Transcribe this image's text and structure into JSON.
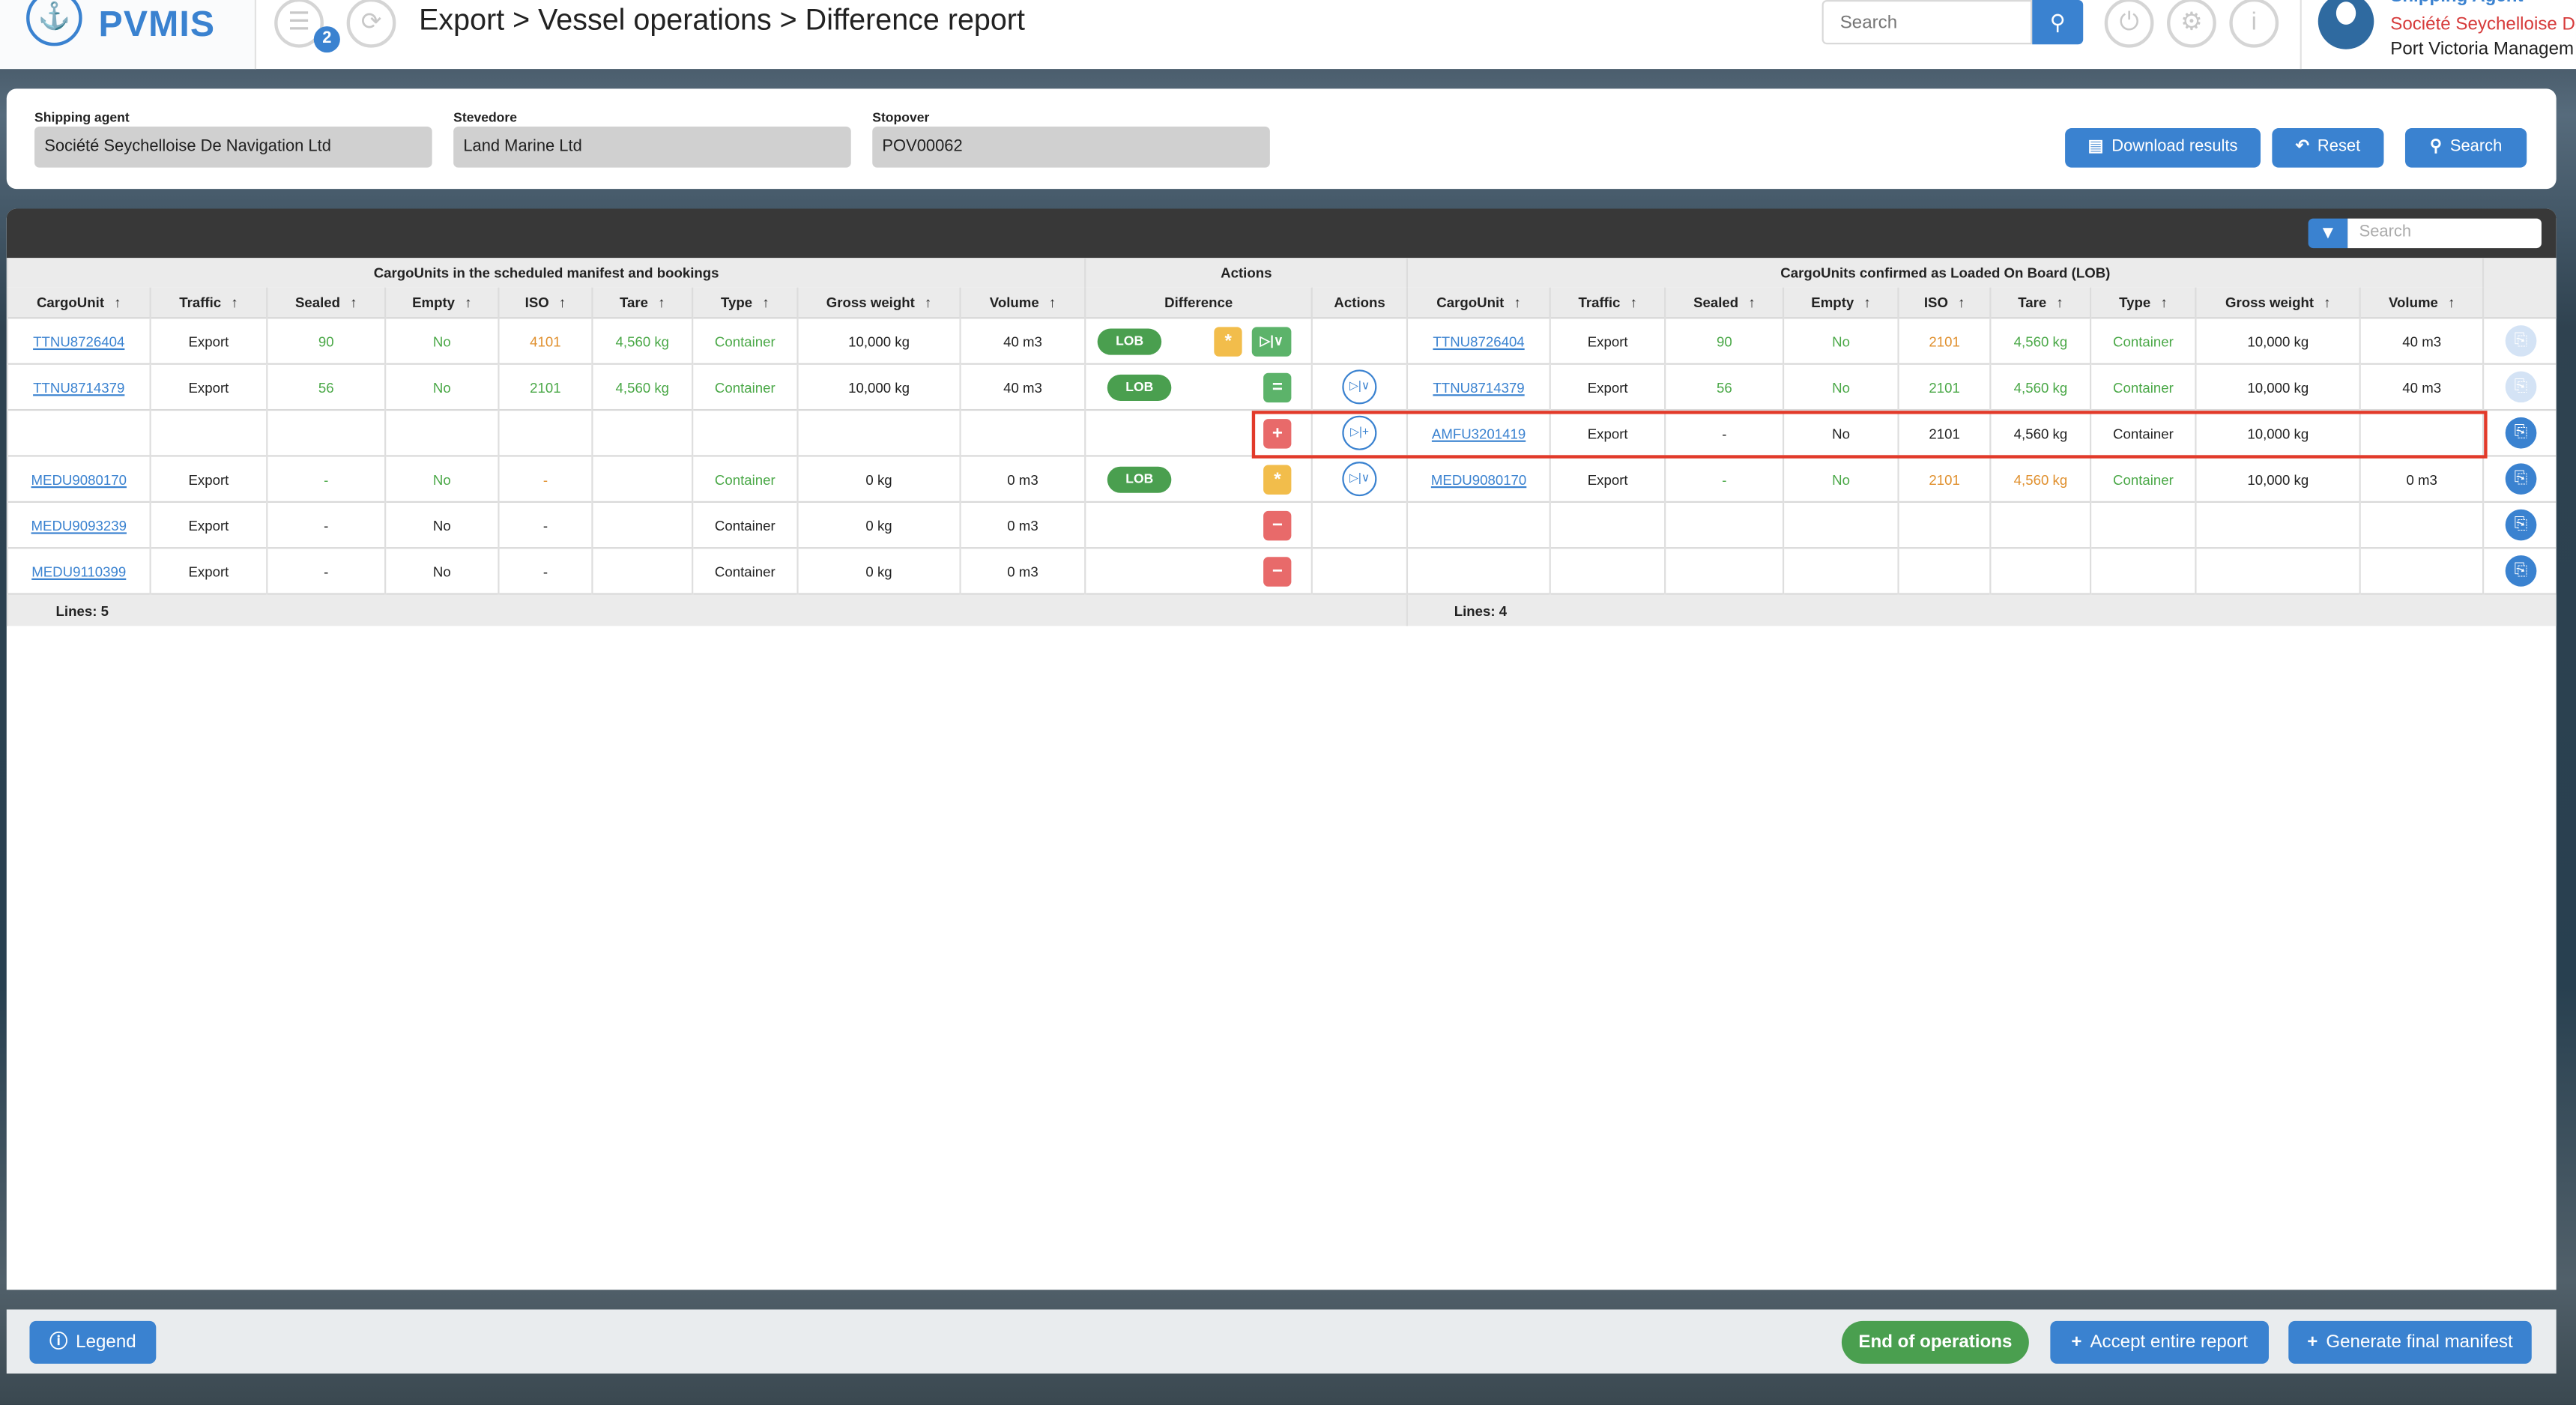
{
  "header": {
    "logo_text": "PVMIS",
    "notification_count": "2",
    "breadcrumb": "Export > Vessel operations > Difference report",
    "search_placeholder": "Search",
    "user": {
      "role": "Shipping Agent",
      "company": "Société Seychelloise De",
      "organization": "Port Victoria Managem"
    }
  },
  "filters": {
    "shipping_agent": {
      "label": "Shipping agent",
      "value": "Société Seychelloise De Navigation Ltd"
    },
    "stevedore": {
      "label": "Stevedore",
      "value": "Land Marine Ltd"
    },
    "stopover": {
      "label": "Stopover",
      "value": "POV00062"
    },
    "download_label": "Download results",
    "reset_label": "Reset",
    "search_label": "Search"
  },
  "table": {
    "search_placeholder": "Search",
    "groups": {
      "manifest": "CargoUnits in the scheduled manifest and bookings",
      "actions": "Actions",
      "lob": "CargoUnits confirmed as Loaded On Board (LOB)"
    },
    "columns": [
      "CargoUnit",
      "Traffic",
      "Sealed",
      "Empty",
      "ISO",
      "Tare",
      "Type",
      "Gross weight",
      "Volume"
    ],
    "difference_header": "Difference",
    "actions_header": "Actions",
    "rows": [
      {
        "left": [
          [
            "TTNU8726404",
            "link"
          ],
          [
            "Export",
            "default"
          ],
          [
            "90",
            "green"
          ],
          [
            "No",
            "green"
          ],
          [
            "4101",
            "orange"
          ],
          [
            "4,560 kg",
            "green"
          ],
          [
            "Container",
            "green"
          ],
          [
            "10,000 kg",
            "default"
          ],
          [
            "40 m3",
            "default"
          ]
        ],
        "lob": "LOB",
        "badges": [
          [
            "*",
            "yellow"
          ],
          [
            "▷|∨",
            "green"
          ]
        ],
        "action": "",
        "right": [
          [
            "TTNU8726404",
            "link"
          ],
          [
            "Export",
            "default"
          ],
          [
            "90",
            "green"
          ],
          [
            "No",
            "green"
          ],
          [
            "2101",
            "orange"
          ],
          [
            "4,560 kg",
            "green"
          ],
          [
            "Container",
            "green"
          ],
          [
            "10,000 kg",
            "default"
          ],
          [
            "40 m3",
            "default"
          ]
        ],
        "row_button_enabled": false
      },
      {
        "left": [
          [
            "TTNU8714379",
            "link"
          ],
          [
            "Export",
            "default"
          ],
          [
            "56",
            "green"
          ],
          [
            "No",
            "green"
          ],
          [
            "2101",
            "green"
          ],
          [
            "4,560 kg",
            "green"
          ],
          [
            "Container",
            "green"
          ],
          [
            "10,000 kg",
            "default"
          ],
          [
            "40 m3",
            "default"
          ]
        ],
        "lob": "LOB",
        "badges": [
          [
            "=",
            "green"
          ]
        ],
        "action": "▷|∨",
        "right": [
          [
            "TTNU8714379",
            "link"
          ],
          [
            "Export",
            "default"
          ],
          [
            "56",
            "green"
          ],
          [
            "No",
            "green"
          ],
          [
            "2101",
            "green"
          ],
          [
            "4,560 kg",
            "green"
          ],
          [
            "Container",
            "green"
          ],
          [
            "10,000 kg",
            "default"
          ],
          [
            "40 m3",
            "default"
          ]
        ],
        "row_button_enabled": false
      },
      {
        "left": [
          [
            "",
            ""
          ],
          [
            "",
            ""
          ],
          [
            "",
            ""
          ],
          [
            "",
            ""
          ],
          [
            "",
            ""
          ],
          [
            "",
            ""
          ],
          [
            "",
            ""
          ],
          [
            "",
            ""
          ],
          [
            "",
            ""
          ]
        ],
        "lob": "",
        "badges": [
          [
            "+",
            "red"
          ]
        ],
        "action": "▷|+",
        "right": [
          [
            "AMFU3201419",
            "link"
          ],
          [
            "Export",
            "default"
          ],
          [
            "-",
            "default"
          ],
          [
            "No",
            "default"
          ],
          [
            "2101",
            "default"
          ],
          [
            "4,560 kg",
            "default"
          ],
          [
            "Container",
            "default"
          ],
          [
            "10,000 kg",
            "default"
          ],
          [
            "",
            "default"
          ]
        ],
        "row_button_enabled": true,
        "highlighted": true
      },
      {
        "left": [
          [
            "MEDU9080170",
            "link"
          ],
          [
            "Export",
            "default"
          ],
          [
            "-",
            "green"
          ],
          [
            "No",
            "green"
          ],
          [
            "-",
            "orange"
          ],
          [
            "",
            ""
          ],
          [
            "Container",
            "green"
          ],
          [
            "0 kg",
            "default"
          ],
          [
            "0 m3",
            "default"
          ]
        ],
        "lob": "LOB",
        "badges": [
          [
            "*",
            "yellow"
          ]
        ],
        "action": "▷|∨",
        "right": [
          [
            "MEDU9080170",
            "link"
          ],
          [
            "Export",
            "default"
          ],
          [
            "-",
            "green"
          ],
          [
            "No",
            "green"
          ],
          [
            "2101",
            "orange"
          ],
          [
            "4,560 kg",
            "orange"
          ],
          [
            "Container",
            "green"
          ],
          [
            "10,000 kg",
            "default"
          ],
          [
            "0 m3",
            "default"
          ]
        ],
        "row_button_enabled": true
      },
      {
        "left": [
          [
            "MEDU9093239",
            "link"
          ],
          [
            "Export",
            "default"
          ],
          [
            "-",
            "default"
          ],
          [
            "No",
            "default"
          ],
          [
            "-",
            "default"
          ],
          [
            "",
            ""
          ],
          [
            "Container",
            "default"
          ],
          [
            "0 kg",
            "default"
          ],
          [
            "0 m3",
            "default"
          ]
        ],
        "lob": "",
        "badges": [
          [
            "−",
            "red"
          ]
        ],
        "action": "",
        "right": [
          [
            "",
            ""
          ],
          [
            "",
            ""
          ],
          [
            "",
            ""
          ],
          [
            "",
            ""
          ],
          [
            "",
            ""
          ],
          [
            "",
            ""
          ],
          [
            "",
            ""
          ],
          [
            "",
            ""
          ],
          [
            "",
            ""
          ]
        ],
        "row_button_enabled": true
      },
      {
        "left": [
          [
            "MEDU9110399",
            "link"
          ],
          [
            "Export",
            "default"
          ],
          [
            "-",
            "default"
          ],
          [
            "No",
            "default"
          ],
          [
            "-",
            "default"
          ],
          [
            "",
            ""
          ],
          [
            "Container",
            "default"
          ],
          [
            "0 kg",
            "default"
          ],
          [
            "0 m3",
            "default"
          ]
        ],
        "lob": "",
        "badges": [
          [
            "−",
            "red"
          ]
        ],
        "action": "",
        "right": [
          [
            "",
            ""
          ],
          [
            "",
            ""
          ],
          [
            "",
            ""
          ],
          [
            "",
            ""
          ],
          [
            "",
            ""
          ],
          [
            "",
            ""
          ],
          [
            "",
            ""
          ],
          [
            "",
            ""
          ],
          [
            "",
            ""
          ]
        ],
        "row_button_enabled": true
      }
    ],
    "left_lines": "Lines: 5",
    "right_lines": "Lines: 4"
  },
  "footer": {
    "legend_label": "Legend",
    "end_label": "End of operations",
    "accept_label": "Accept entire report",
    "generate_label": "Generate final manifest"
  },
  "colors": {
    "accent": "#3a82d0",
    "green": "#4aa847",
    "orange": "#e0902e",
    "red": "#e86a6a",
    "yellow": "#f2bd4b",
    "highlight": "#e23a2a"
  }
}
